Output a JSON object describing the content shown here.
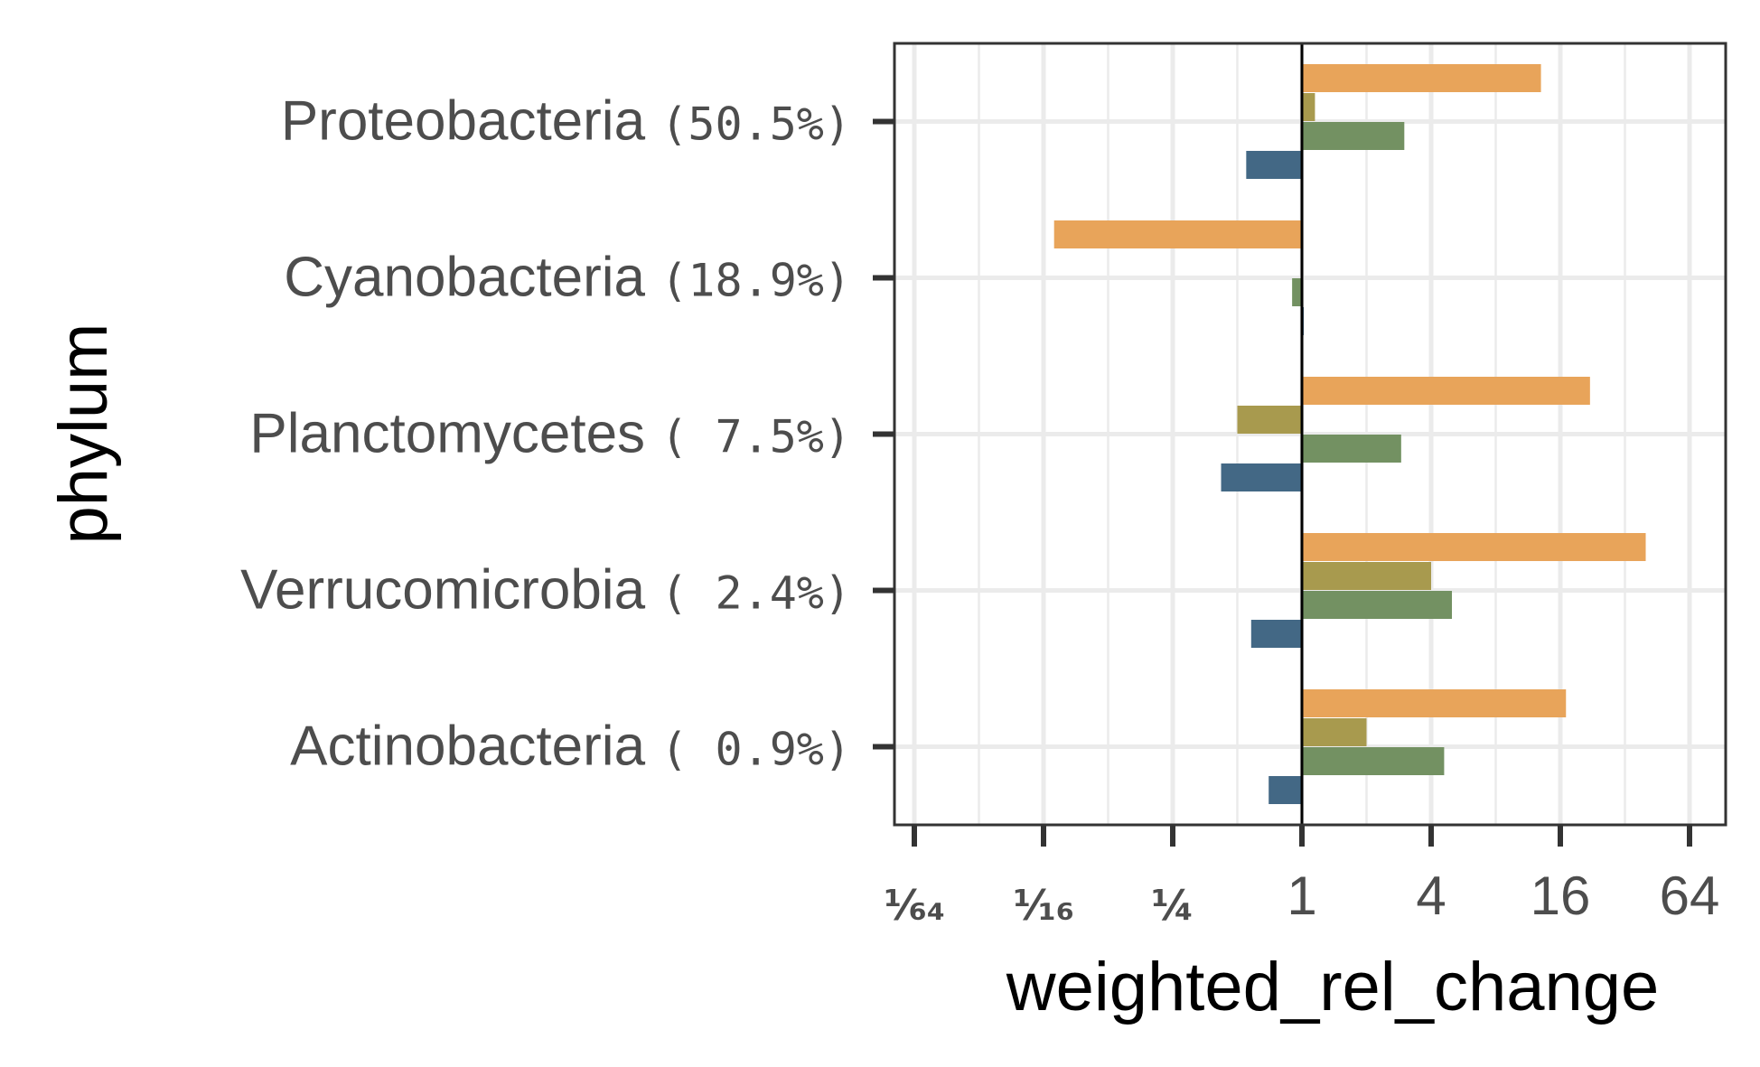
{
  "chart_data": {
    "type": "bar",
    "orientation": "horizontal",
    "x_scale": "log2",
    "xlabel": "weighted_rel_change",
    "ylabel": "phylum",
    "xlim": [
      0.0117,
      90
    ],
    "x_ticks": [
      {
        "value": 0.015625,
        "label": "¹⁄₆₄"
      },
      {
        "value": 0.0625,
        "label": "¹⁄₁₆"
      },
      {
        "value": 0.25,
        "label": "¼"
      },
      {
        "value": 1,
        "label": "1"
      },
      {
        "value": 4,
        "label": "4"
      },
      {
        "value": 16,
        "label": "16"
      },
      {
        "value": 64,
        "label": "64"
      }
    ],
    "grid": true,
    "legend": "none",
    "reference_line": 1,
    "categories": [
      {
        "name": "Proteobacteria",
        "pct": "(50.5%)"
      },
      {
        "name": "Cyanobacteria",
        "pct": "(18.9%)"
      },
      {
        "name": "Planctomycetes",
        "pct": "( 7.5%)"
      },
      {
        "name": "Verrucomicrobia",
        "pct": "( 2.4%)"
      },
      {
        "name": "Actinobacteria",
        "pct": "( 0.9%)"
      }
    ],
    "series": [
      {
        "color": "#e8a45a",
        "values": [
          13,
          0.07,
          22,
          40,
          17
        ]
      },
      {
        "color": "#a89a4e",
        "values": [
          1.15,
          null,
          0.5,
          4,
          2
        ]
      },
      {
        "color": "#739162",
        "values": [
          3,
          0.9,
          2.9,
          5,
          4.6
        ]
      },
      {
        "color": "#436885",
        "values": [
          0.55,
          1.02,
          0.42,
          0.58,
          0.7
        ]
      }
    ]
  }
}
